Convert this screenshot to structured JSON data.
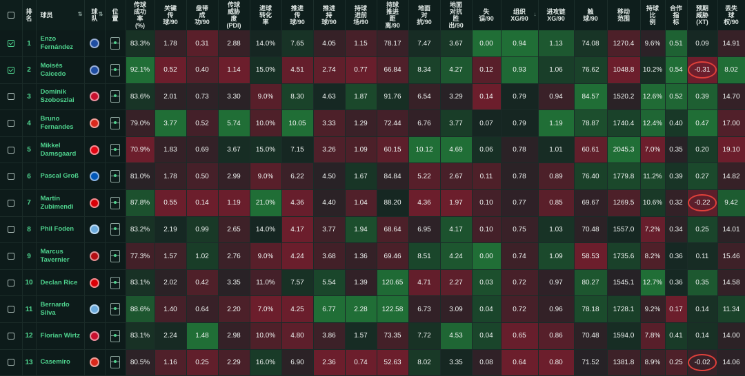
{
  "columns": [
    {
      "key": "check",
      "label": ""
    },
    {
      "key": "rank",
      "label": "排\n名"
    },
    {
      "key": "name",
      "label": "球员"
    },
    {
      "key": "team",
      "label": "球\n队"
    },
    {
      "key": "pos",
      "label": "位\n置"
    },
    {
      "key": "pass_pct",
      "label": "传球\n成功\n率\n(%)"
    },
    {
      "key": "key_pass",
      "label": "关键\n传\n球/90"
    },
    {
      "key": "dribble",
      "label": "盘带\n成\n功/90"
    },
    {
      "key": "pdi",
      "label": "传球\n威胁\n度\n(PDI)"
    },
    {
      "key": "shot_conv",
      "label": "进球\n转化\n率"
    },
    {
      "key": "prog_pass",
      "label": "推进\n传\n球/90"
    },
    {
      "key": "prog_carry",
      "label": "推进\n持\n球/90"
    },
    {
      "key": "carry_box",
      "label": "持球\n进前\n场/90"
    },
    {
      "key": "carry_dist",
      "label": "持球\n推进\n距\n离/90"
    },
    {
      "key": "ground_duel",
      "label": "地面\n对\n抗/90"
    },
    {
      "key": "duel_won",
      "label": "地面\n对抗\n胜\n出/90"
    },
    {
      "key": "turnover",
      "label": "失\n误/90"
    },
    {
      "key": "xgchain",
      "label": "组织\nXG/90",
      "sort": "↓"
    },
    {
      "key": "xgbuild",
      "label": "进攻链\nXG/90"
    },
    {
      "key": "touches",
      "label": "触\n球/90"
    },
    {
      "key": "range",
      "label": "移动\n范围"
    },
    {
      "key": "ret",
      "label": "持球\n比\n例"
    },
    {
      "key": "coop",
      "label": "合作\n指\n标"
    },
    {
      "key": "xt",
      "label": "预期\n威胁\n(XT)"
    },
    {
      "key": "loss",
      "label": "丢失\n球\n权/90"
    }
  ],
  "rows": [
    {
      "checked": true,
      "rank": "1",
      "name": "Enzo Fernández",
      "team": "chelsea-crest-icon",
      "pass_pct": "83.3%",
      "key_pass": "1.78",
      "dribble": "0.31",
      "pdi": "2.88",
      "shot_conv": "14.0%",
      "prog_pass": "7.65",
      "prog_carry": "4.05",
      "carry_box": "1.15",
      "carry_dist": "78.17",
      "ground_duel": "7.47",
      "duel_won": "3.67",
      "turnover": "0.00",
      "xgchain": "0.94",
      "xgbuild": "1.13",
      "touches": "74.08",
      "range": "1270.4",
      "ret": "9.6%",
      "coop": "0.51",
      "xt": "0.09",
      "loss": "14.91"
    },
    {
      "checked": true,
      "rank": "2",
      "name": "Moisés Caicedo",
      "team": "chelsea-crest-icon",
      "pass_pct": "92.1%",
      "key_pass": "0.52",
      "dribble": "0.40",
      "pdi": "1.14",
      "shot_conv": "15.0%",
      "prog_pass": "4.51",
      "prog_carry": "2.74",
      "carry_box": "0.77",
      "carry_dist": "66.84",
      "ground_duel": "8.34",
      "duel_won": "4.27",
      "turnover": "0.12",
      "xgchain": "0.93",
      "xgbuild": "1.06",
      "touches": "76.62",
      "range": "1048.8",
      "ret": "10.2%",
      "coop": "0.54",
      "xt": "-0.31",
      "loss": "8.02"
    },
    {
      "checked": false,
      "rank": "3",
      "name": "Dominik Szoboszlai",
      "team": "liverpool-crest-icon",
      "pass_pct": "83.6%",
      "key_pass": "2.01",
      "dribble": "0.73",
      "pdi": "3.30",
      "shot_conv": "9.0%",
      "prog_pass": "8.30",
      "prog_carry": "4.63",
      "carry_box": "1.87",
      "carry_dist": "91.76",
      "ground_duel": "6.54",
      "duel_won": "3.29",
      "turnover": "0.14",
      "xgchain": "0.79",
      "xgbuild": "0.94",
      "touches": "84.57",
      "range": "1520.2",
      "ret": "12.6%",
      "coop": "0.52",
      "xt": "0.39",
      "loss": "14.70"
    },
    {
      "checked": false,
      "rank": "4",
      "name": "Bruno Fernandes",
      "team": "man-united-crest-icon",
      "pass_pct": "79.0%",
      "key_pass": "3.77",
      "dribble": "0.52",
      "pdi": "5.74",
      "shot_conv": "10.0%",
      "prog_pass": "10.05",
      "prog_carry": "3.33",
      "carry_box": "1.29",
      "carry_dist": "72.44",
      "ground_duel": "6.76",
      "duel_won": "3.77",
      "turnover": "0.07",
      "xgchain": "0.79",
      "xgbuild": "1.19",
      "touches": "78.87",
      "range": "1740.4",
      "ret": "12.4%",
      "coop": "0.40",
      "xt": "0.47",
      "loss": "17.00"
    },
    {
      "checked": false,
      "rank": "5",
      "name": "Mikkel Damsgaard",
      "team": "brentford-crest-icon",
      "pass_pct": "70.9%",
      "key_pass": "1.83",
      "dribble": "0.69",
      "pdi": "3.67",
      "shot_conv": "15.0%",
      "prog_pass": "7.15",
      "prog_carry": "3.26",
      "carry_box": "1.09",
      "carry_dist": "60.15",
      "ground_duel": "10.12",
      "duel_won": "4.69",
      "turnover": "0.06",
      "xgchain": "0.78",
      "xgbuild": "1.01",
      "touches": "60.61",
      "range": "2045.3",
      "ret": "7.0%",
      "coop": "0.35",
      "xt": "0.20",
      "loss": "19.10"
    },
    {
      "checked": false,
      "rank": "6",
      "name": "Pascal Groß",
      "team": "brighton-crest-icon",
      "pass_pct": "81.0%",
      "key_pass": "1.78",
      "dribble": "0.50",
      "pdi": "2.99",
      "shot_conv": "9.0%",
      "prog_pass": "6.22",
      "prog_carry": "4.50",
      "carry_box": "1.67",
      "carry_dist": "84.84",
      "ground_duel": "5.22",
      "duel_won": "2.67",
      "turnover": "0.11",
      "xgchain": "0.78",
      "xgbuild": "0.89",
      "touches": "76.40",
      "range": "1779.8",
      "ret": "11.2%",
      "coop": "0.39",
      "xt": "0.27",
      "loss": "14.82"
    },
    {
      "checked": false,
      "rank": "7",
      "name": "Martín Zubimendi",
      "team": "arsenal-crest-icon",
      "pass_pct": "87.8%",
      "key_pass": "0.55",
      "dribble": "0.14",
      "pdi": "1.19",
      "shot_conv": "21.0%",
      "prog_pass": "4.36",
      "prog_carry": "4.40",
      "carry_box": "1.04",
      "carry_dist": "88.20",
      "ground_duel": "4.36",
      "duel_won": "1.97",
      "turnover": "0.10",
      "xgchain": "0.77",
      "xgbuild": "0.85",
      "touches": "69.67",
      "range": "1269.5",
      "ret": "10.6%",
      "coop": "0.32",
      "xt": "-0.22",
      "loss": "9.42"
    },
    {
      "checked": false,
      "rank": "8",
      "name": "Phil Foden",
      "team": "man-city-crest-icon",
      "pass_pct": "83.2%",
      "key_pass": "2.19",
      "dribble": "0.99",
      "pdi": "2.65",
      "shot_conv": "14.0%",
      "prog_pass": "4.17",
      "prog_carry": "3.77",
      "carry_box": "1.94",
      "carry_dist": "68.64",
      "ground_duel": "6.95",
      "duel_won": "4.17",
      "turnover": "0.10",
      "xgchain": "0.75",
      "xgbuild": "1.03",
      "touches": "70.48",
      "range": "1557.0",
      "ret": "7.2%",
      "coop": "0.34",
      "xt": "0.25",
      "loss": "14.01"
    },
    {
      "checked": false,
      "rank": "9",
      "name": "Marcus Tavernier",
      "team": "bournemouth-crest-icon",
      "pass_pct": "77.3%",
      "key_pass": "1.57",
      "dribble": "1.02",
      "pdi": "2.76",
      "shot_conv": "9.0%",
      "prog_pass": "4.24",
      "prog_carry": "3.68",
      "carry_box": "1.36",
      "carry_dist": "69.46",
      "ground_duel": "8.51",
      "duel_won": "4.24",
      "turnover": "0.00",
      "xgchain": "0.74",
      "xgbuild": "1.09",
      "touches": "58.53",
      "range": "1735.6",
      "ret": "8.2%",
      "coop": "0.36",
      "xt": "0.11",
      "loss": "15.46"
    },
    {
      "checked": false,
      "rank": "10",
      "name": "Declan Rice",
      "team": "arsenal-crest-icon",
      "pass_pct": "83.1%",
      "key_pass": "2.02",
      "dribble": "0.42",
      "pdi": "3.35",
      "shot_conv": "11.0%",
      "prog_pass": "7.57",
      "prog_carry": "5.54",
      "carry_box": "1.39",
      "carry_dist": "120.65",
      "ground_duel": "4.71",
      "duel_won": "2.27",
      "turnover": "0.03",
      "xgchain": "0.72",
      "xgbuild": "0.97",
      "touches": "80.27",
      "range": "1545.1",
      "ret": "12.7%",
      "coop": "0.36",
      "xt": "0.35",
      "loss": "14.58"
    },
    {
      "checked": false,
      "rank": "11",
      "name": "Bernardo Silva",
      "team": "man-city-crest-icon",
      "pass_pct": "88.6%",
      "key_pass": "1.40",
      "dribble": "0.64",
      "pdi": "2.20",
      "shot_conv": "7.0%",
      "prog_pass": "4.25",
      "prog_carry": "6.77",
      "carry_box": "2.28",
      "carry_dist": "122.58",
      "ground_duel": "6.73",
      "duel_won": "3.09",
      "turnover": "0.04",
      "xgchain": "0.72",
      "xgbuild": "0.96",
      "touches": "78.18",
      "range": "1728.1",
      "ret": "9.2%",
      "coop": "0.17",
      "xt": "0.14",
      "loss": "11.34"
    },
    {
      "checked": false,
      "rank": "12",
      "name": "Florian Wirtz",
      "team": "liverpool-crest-icon",
      "pass_pct": "83.1%",
      "key_pass": "2.24",
      "dribble": "1.48",
      "pdi": "2.98",
      "shot_conv": "10.0%",
      "prog_pass": "4.80",
      "prog_carry": "3.86",
      "carry_box": "1.57",
      "carry_dist": "73.35",
      "ground_duel": "7.72",
      "duel_won": "4.53",
      "turnover": "0.04",
      "xgchain": "0.65",
      "xgbuild": "0.86",
      "touches": "70.48",
      "range": "1594.0",
      "ret": "7.8%",
      "coop": "0.41",
      "xt": "0.14",
      "loss": "14.00"
    },
    {
      "checked": false,
      "rank": "13",
      "name": "Casemiro",
      "team": "man-united-crest-icon",
      "pass_pct": "80.5%",
      "key_pass": "1.16",
      "dribble": "0.25",
      "pdi": "2.29",
      "shot_conv": "16.0%",
      "prog_pass": "6.90",
      "prog_carry": "2.36",
      "carry_box": "0.74",
      "carry_dist": "52.63",
      "ground_duel": "8.02",
      "duel_won": "3.35",
      "turnover": "0.08",
      "xgchain": "0.64",
      "xgbuild": "0.80",
      "touches": "71.52",
      "range": "1381.8",
      "ret": "8.9%",
      "coop": "0.25",
      "xt": "-0.02",
      "loss": "14.06"
    }
  ],
  "circled_xt_rows": [
    1,
    6,
    12
  ],
  "team_colors": {
    "chelsea-crest-icon": "#1f4ea3",
    "liverpool-crest-icon": "#c8102e",
    "man-united-crest-icon": "#da291c",
    "brentford-crest-icon": "#e30613",
    "brighton-crest-icon": "#0057b8",
    "arsenal-crest-icon": "#db0007",
    "man-city-crest-icon": "#6cabdd",
    "bournemouth-crest-icon": "#b50e12"
  },
  "colors": {
    "positive": "#1f6b3e",
    "negative": "#6b2230",
    "accent": "#4fd38e",
    "highlight": "#e0403a"
  }
}
